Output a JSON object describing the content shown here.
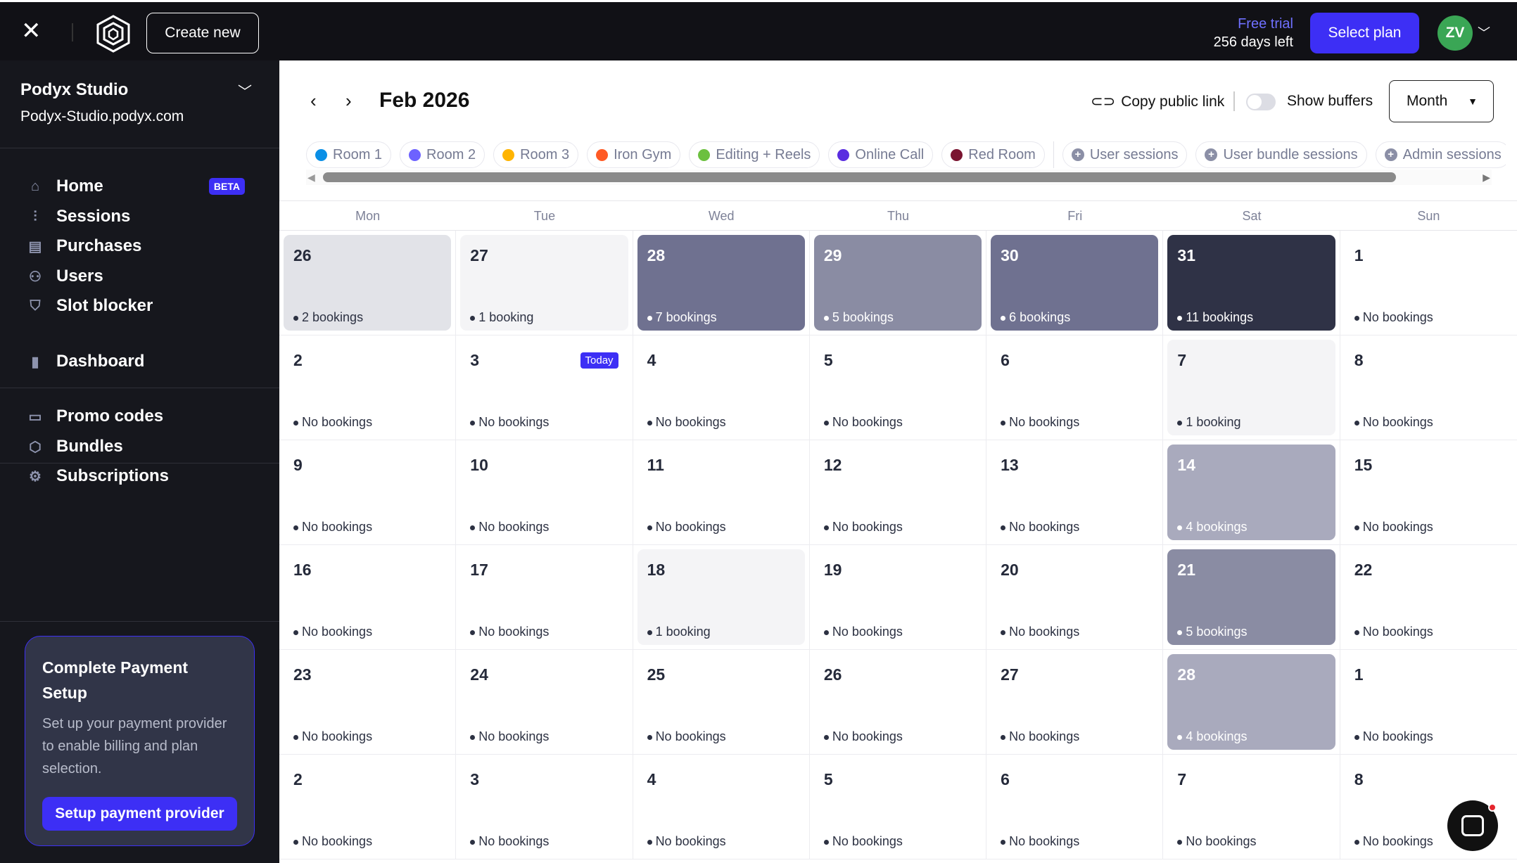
{
  "topbar": {
    "create_label": "Create new",
    "trial_label": "Free trial",
    "days_left": "256 days left",
    "select_plan": "Select plan",
    "avatar_initials": "ZV"
  },
  "sidebar": {
    "studio_name": "Podyx Studio",
    "studio_url": "Podyx-Studio.podyx.com",
    "items": [
      {
        "label": "Home",
        "icon": "home-icon",
        "badge": "BETA"
      },
      {
        "label": "Sessions",
        "icon": "waveform-icon"
      },
      {
        "label": "Purchases",
        "icon": "receipt-icon"
      },
      {
        "label": "Users",
        "icon": "users-icon"
      },
      {
        "label": "Slot blocker",
        "icon": "shield-icon"
      },
      {
        "label": "Dashboard",
        "icon": "bar-chart-icon"
      },
      {
        "label": "Promo codes",
        "icon": "ticket-icon"
      },
      {
        "label": "Bundles",
        "icon": "box-icon"
      },
      {
        "label": "Subscriptions",
        "icon": "gear-badge-icon"
      }
    ],
    "card": {
      "title": "Complete Payment Setup",
      "text": "Set up your payment provider to enable billing and plan selection.",
      "button": "Setup payment provider"
    }
  },
  "header": {
    "month": "Feb 2026",
    "copy_link": "Copy public link",
    "show_buffers": "Show buffers",
    "view": "Month"
  },
  "filters": [
    {
      "label": "Room 1",
      "color": "#0a8fe6"
    },
    {
      "label": "Room 2",
      "color": "#6d62ff"
    },
    {
      "label": "Room 3",
      "color": "#ffb400"
    },
    {
      "label": "Iron Gym",
      "color": "#ff5a25"
    },
    {
      "label": "Editing + Reels",
      "color": "#6cc03f"
    },
    {
      "label": "Online Call",
      "color": "#5a2de0"
    },
    {
      "label": "Red Room",
      "color": "#7a1430"
    }
  ],
  "session_filters": [
    "User sessions",
    "User bundle sessions",
    "Admin sessions"
  ],
  "weekdays": [
    "Mon",
    "Tue",
    "Wed",
    "Thu",
    "Fri",
    "Sat",
    "Sun"
  ],
  "today_label": "Today",
  "weeks": [
    [
      {
        "day": "26",
        "label": "2 bookings",
        "bg": "#e2e3e8"
      },
      {
        "day": "27",
        "label": "1 booking",
        "bg": "#f4f4f6"
      },
      {
        "day": "28",
        "label": "7 bookings",
        "bg": "#6f7190",
        "dark": true
      },
      {
        "day": "29",
        "label": "5 bookings",
        "bg": "#8a8ca3",
        "dark": true
      },
      {
        "day": "30",
        "label": "6 bookings",
        "bg": "#6f7190",
        "dark": true
      },
      {
        "day": "31",
        "label": "11 bookings",
        "bg": "#2f3246",
        "dark": true
      },
      {
        "day": "1",
        "label": "No bookings"
      }
    ],
    [
      {
        "day": "2",
        "label": "No bookings"
      },
      {
        "day": "3",
        "label": "No bookings",
        "today": true
      },
      {
        "day": "4",
        "label": "No bookings"
      },
      {
        "day": "5",
        "label": "No bookings"
      },
      {
        "day": "6",
        "label": "No bookings"
      },
      {
        "day": "7",
        "label": "1 booking",
        "bg": "#f4f4f6"
      },
      {
        "day": "8",
        "label": "No bookings"
      }
    ],
    [
      {
        "day": "9",
        "label": "No bookings"
      },
      {
        "day": "10",
        "label": "No bookings"
      },
      {
        "day": "11",
        "label": "No bookings"
      },
      {
        "day": "12",
        "label": "No bookings"
      },
      {
        "day": "13",
        "label": "No bookings"
      },
      {
        "day": "14",
        "label": "4 bookings",
        "bg": "#a9aabd",
        "dark": true
      },
      {
        "day": "15",
        "label": "No bookings"
      }
    ],
    [
      {
        "day": "16",
        "label": "No bookings"
      },
      {
        "day": "17",
        "label": "No bookings"
      },
      {
        "day": "18",
        "label": "1 booking",
        "bg": "#f4f4f6"
      },
      {
        "day": "19",
        "label": "No bookings"
      },
      {
        "day": "20",
        "label": "No bookings"
      },
      {
        "day": "21",
        "label": "5 bookings",
        "bg": "#8a8ca3",
        "dark": true
      },
      {
        "day": "22",
        "label": "No bookings"
      }
    ],
    [
      {
        "day": "23",
        "label": "No bookings"
      },
      {
        "day": "24",
        "label": "No bookings"
      },
      {
        "day": "25",
        "label": "No bookings"
      },
      {
        "day": "26",
        "label": "No bookings"
      },
      {
        "day": "27",
        "label": "No bookings"
      },
      {
        "day": "28",
        "label": "4 bookings",
        "bg": "#a9aabd",
        "dark": true
      },
      {
        "day": "1",
        "label": "No bookings"
      }
    ],
    [
      {
        "day": "2",
        "label": "No bookings"
      },
      {
        "day": "3",
        "label": "No bookings"
      },
      {
        "day": "4",
        "label": "No bookings"
      },
      {
        "day": "5",
        "label": "No bookings"
      },
      {
        "day": "6",
        "label": "No bookings"
      },
      {
        "day": "7",
        "label": "No bookings"
      },
      {
        "day": "8",
        "label": "No bookings"
      }
    ]
  ]
}
